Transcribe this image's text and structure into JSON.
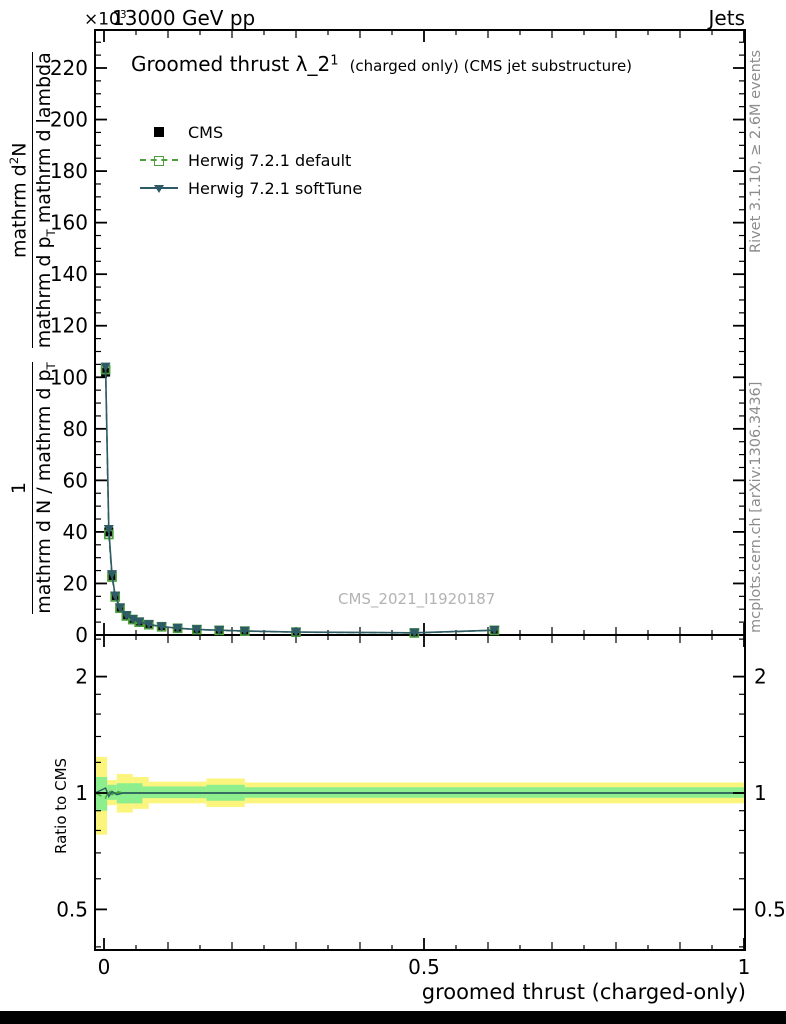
{
  "header": {
    "scale_base": "×10",
    "scale_exp": "3",
    "beam": "13000 GeV pp",
    "topic": "Jets"
  },
  "title": {
    "main": "Groomed thrust λ_2",
    "sup": "1",
    "note": "(charged only) (CMS jet substructure)"
  },
  "ylabel": {
    "f1num": "1",
    "f1den": "mathrm d N / mathrm d p",
    "f1den_sub": "T",
    "f2num": "mathrm d",
    "f2num_sup": "2",
    "f2num_b": "N",
    "f2den": "mathrm d p",
    "f2den_sub": "T",
    "f2den_b": " mathrm d lambda"
  },
  "ratio_ylabel": "Ratio to CMS",
  "xlabel": "groomed thrust (charged-only)",
  "watermark": "CMS_2021_I1920187",
  "side_notes": {
    "rivet": "Rivet 3.1.10, ≥ 2.6M events",
    "mcplots": "mcplots.cern.ch [arXiv:1306.3436]"
  },
  "chart_data": [
    {
      "type": "line",
      "title": "Groomed thrust λ_2^1 (charged only) (CMS jet substructure)",
      "xlabel": "groomed thrust (charged-only)",
      "scale_note": "×10³",
      "xlim": [
        -0.014,
        1.0
      ],
      "ylim": [
        0,
        233
      ],
      "yticks": [
        0,
        20,
        40,
        60,
        80,
        100,
        120,
        140,
        160,
        180,
        200,
        220
      ],
      "y_minor_step": 5,
      "xticks": [
        0,
        0.5,
        1
      ],
      "x_minor_step": 0.05,
      "x": [
        0.0025,
        0.0075,
        0.0125,
        0.0175,
        0.025,
        0.035,
        0.045,
        0.055,
        0.07,
        0.09,
        0.115,
        0.145,
        0.18,
        0.22,
        0.3,
        0.485,
        0.61
      ],
      "series": [
        {
          "name": "CMS",
          "marker": "square-filled",
          "color": "#000000",
          "values": [
            102,
            40,
            23,
            15,
            10.5,
            7.5,
            6,
            5,
            4,
            3.2,
            2.6,
            2.1,
            1.8,
            1.5,
            1.1,
            0.8,
            1.8
          ]
        },
        {
          "name": "Herwig 7.2.1 default",
          "marker": "square-open",
          "line": "dashed",
          "color": "#4c9f3c",
          "values": [
            103,
            39,
            22.5,
            14.8,
            10.4,
            7.4,
            6,
            5,
            4,
            3.2,
            2.6,
            2.1,
            1.8,
            1.5,
            1.1,
            0.8,
            1.8
          ]
        },
        {
          "name": "Herwig 7.2.1 softTune",
          "marker": "triangle-down-filled",
          "line": "solid",
          "color": "#2f5a68",
          "values": [
            104,
            41,
            23.5,
            15.2,
            10.6,
            7.6,
            6.1,
            5.1,
            4.1,
            3.3,
            2.65,
            2.15,
            1.85,
            1.55,
            1.15,
            0.85,
            1.85
          ]
        }
      ]
    },
    {
      "type": "ratio-band",
      "ylabel": "Ratio to CMS",
      "yscale": "log",
      "ylim": [
        0.39,
        2.57
      ],
      "yticks": [
        0.5,
        1,
        2
      ],
      "y_minor": [
        0.4,
        0.6,
        0.7,
        0.8,
        0.9,
        1.2,
        1.4,
        1.6,
        1.8,
        2.5
      ],
      "reference": 1,
      "colors": {
        "yellow": "#fbf57e",
        "green": "#8cee8c",
        "line": "#2fa12f"
      },
      "yellow_band": [
        {
          "x0": 0,
          "x1": 0.005,
          "lo": 0.78,
          "hi": 1.24
        },
        {
          "x0": 0.005,
          "x1": 0.02,
          "lo": 0.93,
          "hi": 1.08
        },
        {
          "x0": 0.02,
          "x1": 0.045,
          "lo": 0.89,
          "hi": 1.12
        },
        {
          "x0": 0.045,
          "x1": 0.07,
          "lo": 0.91,
          "hi": 1.1
        },
        {
          "x0": 0.07,
          "x1": 0.16,
          "lo": 0.94,
          "hi": 1.07
        },
        {
          "x0": 0.16,
          "x1": 0.22,
          "lo": 0.92,
          "hi": 1.09
        },
        {
          "x0": 0.22,
          "x1": 1,
          "lo": 0.94,
          "hi": 1.065
        }
      ],
      "green_band": [
        {
          "x0": 0,
          "x1": 0.005,
          "lo": 0.9,
          "hi": 1.1
        },
        {
          "x0": 0.005,
          "x1": 0.02,
          "lo": 0.96,
          "hi": 1.05
        },
        {
          "x0": 0.02,
          "x1": 0.06,
          "lo": 0.94,
          "hi": 1.06
        },
        {
          "x0": 0.06,
          "x1": 0.16,
          "lo": 0.97,
          "hi": 1.04
        },
        {
          "x0": 0.16,
          "x1": 0.22,
          "lo": 0.955,
          "hi": 1.05
        },
        {
          "x0": 0.22,
          "x1": 1,
          "lo": 0.972,
          "hi": 1.035
        }
      ],
      "mc_ratio": {
        "x": [
          0,
          0.0025,
          0.0075,
          0.0125,
          0.02,
          0.03,
          0.05,
          0.1,
          1.0
        ],
        "default": [
          1,
          0.97,
          1.02,
          0.99,
          1.01,
          1.0,
          1.0,
          1.0,
          1.0
        ],
        "softtune": [
          1,
          1.03,
          0.98,
          1.01,
          0.99,
          1.0,
          1.0,
          1.0,
          1.0
        ]
      }
    }
  ]
}
